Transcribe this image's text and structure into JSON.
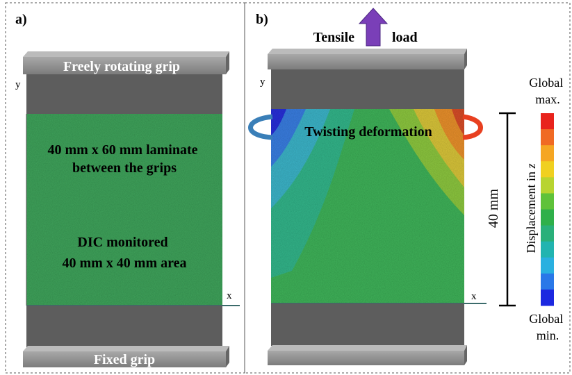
{
  "panel_a": {
    "label": "a)",
    "top_grip": "Freely rotating grip",
    "axis_y": "y",
    "axis_x": "x",
    "laminate_label": [
      "40 mm x 60 mm laminate",
      "between the grips"
    ],
    "dic_label": [
      "DIC monitored",
      "40 mm x 40 mm area"
    ],
    "bottom_grip": "Fixed grip"
  },
  "panel_b": {
    "label": "b)",
    "load": [
      "Tensile",
      "load"
    ],
    "axis_y": "y",
    "axis_x": "x",
    "twist": "Twisting deformation",
    "dimension": "40 mm",
    "colorbar": {
      "max": [
        "Global",
        "max."
      ],
      "title": "Displacement in ",
      "title_var": "z",
      "min": [
        "Global",
        "min."
      ]
    }
  }
}
